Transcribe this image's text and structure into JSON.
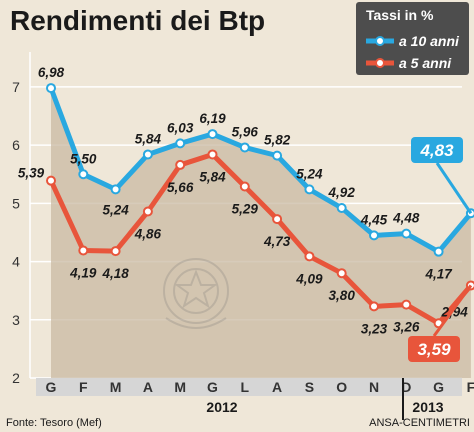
{
  "chart_data": {
    "type": "line",
    "title": "Rendimenti dei Btp",
    "categories": [
      "G",
      "F",
      "M",
      "A",
      "M",
      "G",
      "L",
      "A",
      "S",
      "O",
      "N",
      "D",
      "G",
      "F"
    ],
    "year_labels": [
      "2012",
      "2013"
    ],
    "ylim": [
      2,
      7.6
    ],
    "yticks": [
      "2",
      "3",
      "4",
      "5",
      "6",
      "7"
    ],
    "legend": {
      "title": "Tassi in %",
      "position": "top-right"
    },
    "series": [
      {
        "name": "a 10 anni",
        "color": "#29a8e0",
        "values": [
          6.98,
          5.5,
          5.24,
          5.84,
          6.03,
          6.19,
          5.96,
          5.82,
          5.24,
          4.92,
          4.45,
          4.48,
          4.17,
          4.83
        ],
        "labels": [
          "6,98",
          "5,50",
          "5,24",
          "5,84",
          "6,03",
          "6,19",
          "5,96",
          "5,82",
          "5,24",
          "4,92",
          "4,45",
          "4,48",
          "4,17",
          "4,83"
        ]
      },
      {
        "name": "a 5 anni",
        "color": "#e8553b",
        "values": [
          5.39,
          4.19,
          4.18,
          4.86,
          5.66,
          5.84,
          5.29,
          4.73,
          4.09,
          3.8,
          3.23,
          3.26,
          2.94,
          3.59
        ],
        "labels": [
          "5,39",
          "4,19",
          "4,18",
          "4,86",
          "5,66",
          "5,84",
          "5,29",
          "4,73",
          "4,09",
          "3,80",
          "3,23",
          "3,26",
          "2,94",
          "3,59"
        ]
      }
    ],
    "source": "Fonte: Tesoro (Mef)",
    "credit": "ANSA-CENTIMETRI",
    "colors": {
      "background": "#efe7d8",
      "area": "#c9b9a3",
      "legend_bg": "#4d4d4d",
      "axis_band": "#d6d6d6"
    }
  }
}
